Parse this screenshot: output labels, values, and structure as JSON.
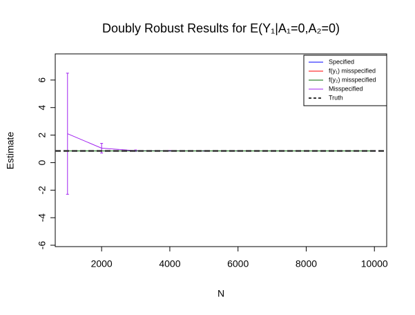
{
  "chart_data": {
    "type": "line",
    "title": "Doubly Robust Results for E(Y₁|A₁=0,A₂=0)",
    "x_label": "N",
    "y_label": "Estimate",
    "x": [
      1000,
      2000,
      3000,
      4000,
      5000,
      6000,
      7000,
      8000,
      9000,
      10000
    ],
    "series": [
      {
        "name": "Misspecified",
        "color": "#a020f0",
        "values": [
          2.1,
          1.05,
          0.87,
          0.86,
          0.85,
          0.85,
          0.85,
          0.85,
          0.85,
          0.85
        ],
        "errors": [
          4.4,
          0.35,
          0.05,
          0.03,
          0.02,
          0.02,
          0.02,
          0.02,
          0.02,
          0.02
        ]
      },
      {
        "name": "Specified",
        "color": "#0000ff",
        "values": [
          0.85,
          0.85,
          0.85,
          0.85,
          0.85,
          0.85,
          0.85,
          0.85,
          0.85,
          0.85
        ]
      },
      {
        "name": "f(y₁) misspecified",
        "color": "#ff0000",
        "values": [
          0.85,
          0.85,
          0.85,
          0.85,
          0.85,
          0.85,
          0.85,
          0.85,
          0.85,
          0.85
        ]
      },
      {
        "name": "f(y₂) misspecified",
        "color": "#006400",
        "values": [
          0.85,
          0.85,
          0.85,
          0.85,
          0.85,
          0.85,
          0.85,
          0.85,
          0.85,
          0.85
        ]
      }
    ],
    "truth": {
      "name": "Truth",
      "color": "#333333",
      "value": 0.85
    },
    "legend_order": [
      1,
      2,
      3,
      0
    ],
    "xlim": [
      640,
      10360
    ],
    "ylim": [
      -6.1,
      7.9
    ],
    "xticks": [
      2000,
      4000,
      6000,
      8000,
      10000
    ],
    "yticks": [
      -6,
      -4,
      -2,
      0,
      2,
      4,
      6
    ],
    "legend": "top-right"
  }
}
